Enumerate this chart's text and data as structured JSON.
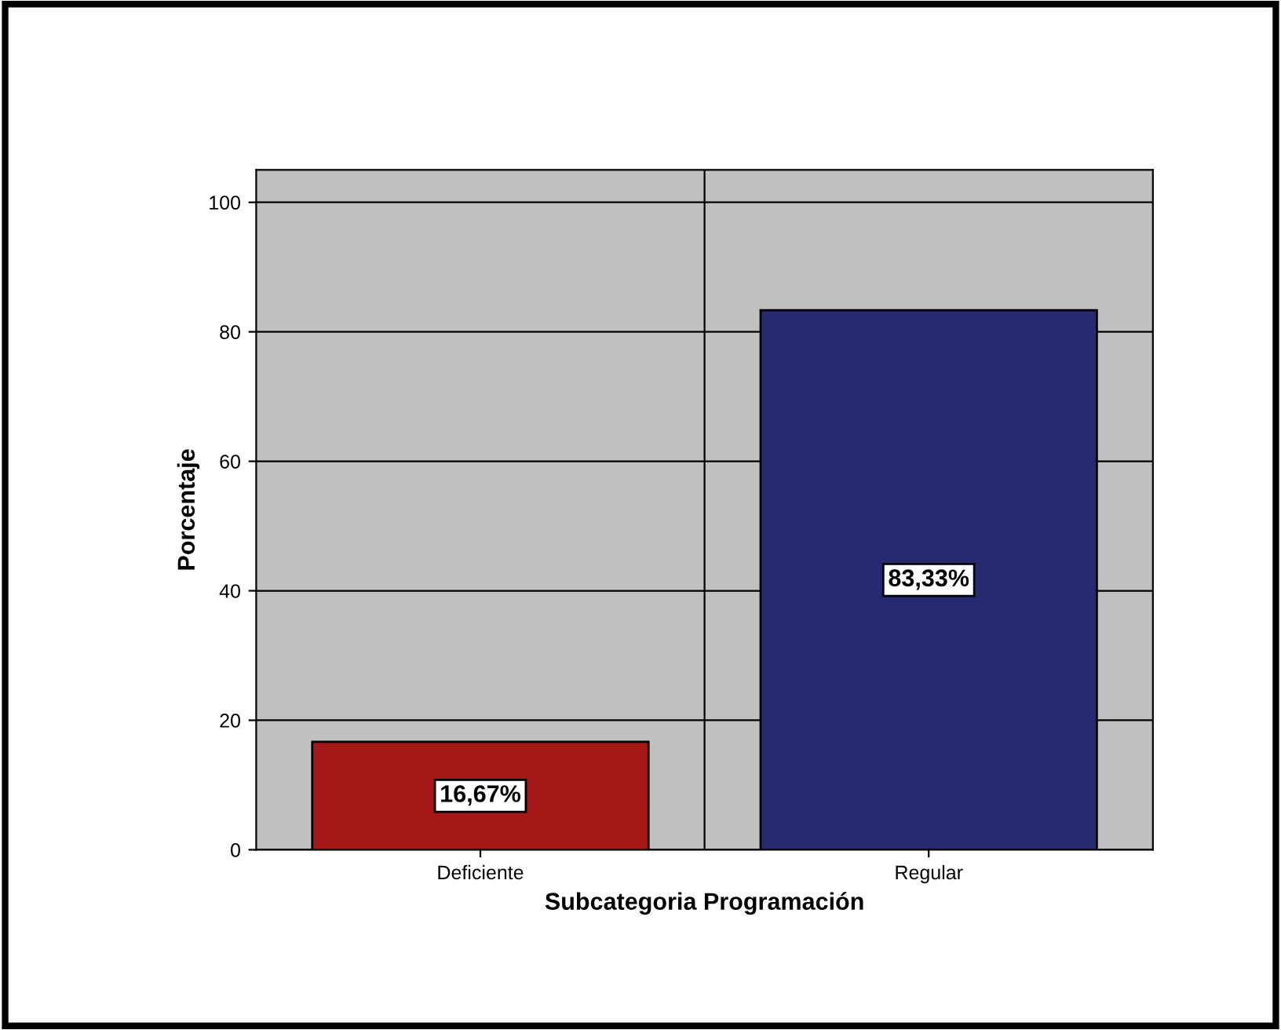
{
  "chart_data": {
    "type": "bar",
    "xlabel": "Subcategoria Programación",
    "ylabel": "Porcentaje",
    "categories": [
      "Deficiente",
      "Regular"
    ],
    "values": [
      16.67,
      83.33
    ],
    "colors": [
      "#a51818",
      "#272a72"
    ],
    "value_labels": [
      "16,67%",
      "83,33%"
    ],
    "ylim": [
      0,
      105
    ],
    "yticks": [
      0,
      20,
      40,
      60,
      80,
      100
    ],
    "grid": true
  }
}
